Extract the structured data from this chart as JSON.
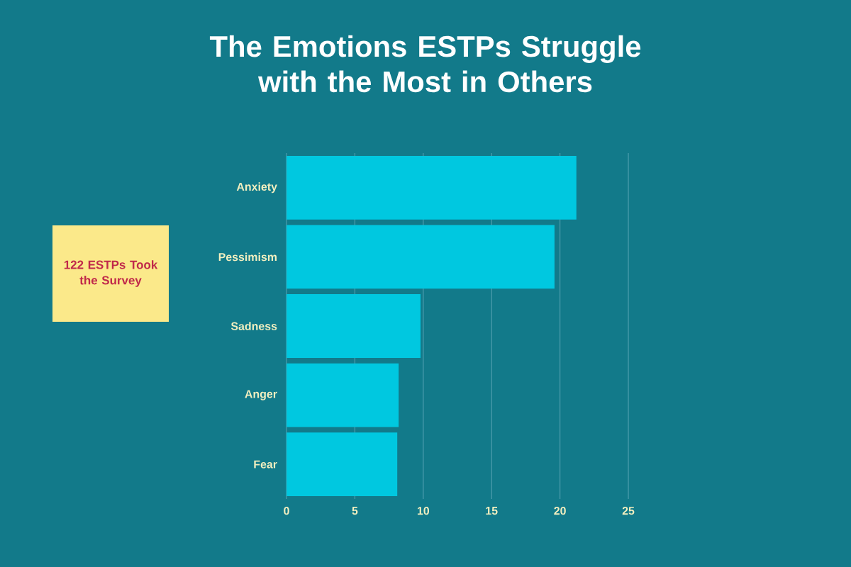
{
  "chart_data": {
    "type": "bar",
    "orientation": "horizontal",
    "title": "The Emotions ESTPs Struggle with the Most in Others",
    "categories": [
      "Anxiety",
      "Pessimism",
      "Sadness",
      "Anger",
      "Fear"
    ],
    "values": [
      21.2,
      19.6,
      9.8,
      8.2,
      8.1
    ],
    "color": "#00c8e0",
    "xlim": [
      0,
      25
    ],
    "xticks": [
      0,
      5,
      10,
      15,
      20,
      25
    ],
    "grid": "x",
    "annotations": [
      "122 ESTPs Took the Survey"
    ]
  }
}
